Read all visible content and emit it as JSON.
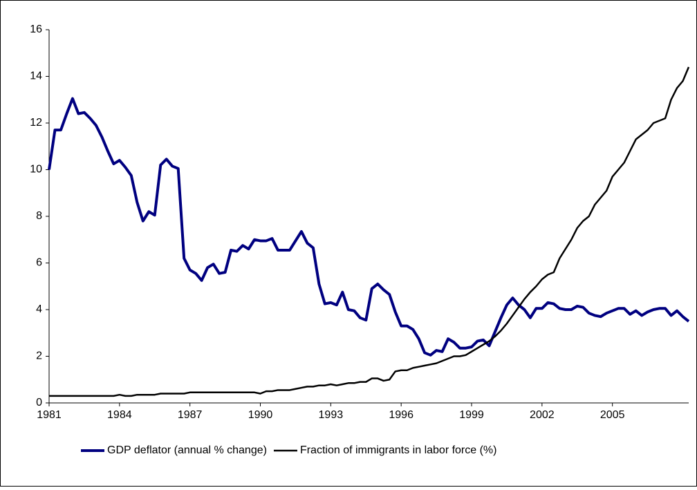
{
  "chart_data": {
    "type": "line",
    "x": [
      1981,
      1981.25,
      1981.5,
      1981.75,
      1982,
      1982.25,
      1982.5,
      1982.75,
      1983,
      1983.25,
      1983.5,
      1983.75,
      1984,
      1984.25,
      1984.5,
      1984.75,
      1985,
      1985.25,
      1985.5,
      1985.75,
      1986,
      1986.25,
      1986.5,
      1986.75,
      1987,
      1987.25,
      1987.5,
      1987.75,
      1988,
      1988.25,
      1988.5,
      1988.75,
      1989,
      1989.25,
      1989.5,
      1989.75,
      1990,
      1990.25,
      1990.5,
      1990.75,
      1991,
      1991.25,
      1991.5,
      1991.75,
      1992,
      1992.25,
      1992.5,
      1992.75,
      1993,
      1993.25,
      1993.5,
      1993.75,
      1994,
      1994.25,
      1994.5,
      1994.75,
      1995,
      1995.25,
      1995.5,
      1995.75,
      1996,
      1996.25,
      1996.5,
      1996.75,
      1997,
      1997.25,
      1997.5,
      1997.75,
      1998,
      1998.25,
      1998.5,
      1998.75,
      1999,
      1999.25,
      1999.5,
      1999.75,
      2000,
      2000.25,
      2000.5,
      2000.75,
      2001,
      2001.25,
      2001.5,
      2001.75,
      2002,
      2002.25,
      2002.5,
      2002.75,
      2003,
      2003.25,
      2003.5,
      2003.75,
      2004,
      2004.25,
      2004.5,
      2004.75,
      2005,
      2005.25,
      2005.5,
      2005.75,
      2006,
      2006.25,
      2006.5,
      2006.75,
      2007,
      2007.25,
      2007.5,
      2007.75,
      2008,
      2008.25
    ],
    "series": [
      {
        "name": "GDP deflator (annual % change)",
        "color": "#000080",
        "values": [
          10.0,
          11.7,
          11.7,
          12.4,
          13.05,
          12.4,
          12.45,
          12.2,
          11.9,
          11.4,
          10.8,
          10.25,
          10.4,
          10.1,
          9.75,
          8.6,
          7.8,
          8.2,
          8.05,
          10.2,
          10.45,
          10.15,
          10.05,
          6.2,
          5.7,
          5.55,
          5.25,
          5.8,
          5.95,
          5.55,
          5.6,
          6.55,
          6.5,
          6.75,
          6.6,
          7.0,
          6.95,
          6.95,
          7.05,
          6.55,
          6.55,
          6.55,
          6.95,
          7.35,
          6.85,
          6.65,
          5.1,
          4.25,
          4.3,
          4.2,
          4.75,
          4.0,
          3.95,
          3.65,
          3.55,
          4.9,
          5.1,
          4.85,
          4.65,
          3.9,
          3.3,
          3.3,
          3.15,
          2.75,
          2.15,
          2.05,
          2.25,
          2.2,
          2.75,
          2.6,
          2.35,
          2.35,
          2.4,
          2.65,
          2.7,
          2.45,
          3.05,
          3.65,
          4.2,
          4.5,
          4.2,
          4.0,
          3.65,
          4.05,
          4.05,
          4.3,
          4.25,
          4.05,
          4.0,
          4.0,
          4.15,
          4.1,
          3.85,
          3.75,
          3.7,
          3.85,
          3.95,
          4.05,
          4.05,
          3.8,
          3.95,
          3.75,
          3.9,
          4.0,
          4.05,
          4.05,
          3.75,
          3.95,
          3.7,
          3.5
        ]
      },
      {
        "name": "Fraction of immigrants in labor force (%)",
        "color": "#000000",
        "values": [
          0.3,
          0.3,
          0.3,
          0.3,
          0.3,
          0.3,
          0.3,
          0.3,
          0.3,
          0.3,
          0.3,
          0.3,
          0.35,
          0.3,
          0.3,
          0.35,
          0.35,
          0.35,
          0.35,
          0.4,
          0.4,
          0.4,
          0.4,
          0.4,
          0.45,
          0.45,
          0.45,
          0.45,
          0.45,
          0.45,
          0.45,
          0.45,
          0.45,
          0.45,
          0.45,
          0.45,
          0.4,
          0.5,
          0.5,
          0.55,
          0.55,
          0.55,
          0.6,
          0.65,
          0.7,
          0.7,
          0.75,
          0.75,
          0.8,
          0.75,
          0.8,
          0.85,
          0.85,
          0.9,
          0.9,
          1.05,
          1.05,
          0.95,
          1.0,
          1.35,
          1.4,
          1.4,
          1.5,
          1.55,
          1.6,
          1.65,
          1.7,
          1.8,
          1.9,
          2.0,
          2.0,
          2.05,
          2.2,
          2.35,
          2.5,
          2.65,
          2.85,
          3.1,
          3.4,
          3.75,
          4.1,
          4.45,
          4.75,
          5.0,
          5.3,
          5.5,
          5.6,
          6.2,
          6.6,
          7.0,
          7.5,
          7.8,
          8.0,
          8.5,
          8.8,
          9.1,
          9.7,
          10.0,
          10.3,
          10.8,
          11.3,
          11.5,
          11.7,
          12.0,
          12.1,
          12.2,
          13.0,
          13.5,
          13.8,
          14.4
        ]
      }
    ],
    "xlim": [
      1981,
      2008.25
    ],
    "xticks": [
      1981,
      1984,
      1987,
      1990,
      1993,
      1996,
      1999,
      2002,
      2005
    ],
    "ylim": [
      0,
      16
    ],
    "yticks": [
      0,
      2,
      4,
      6,
      8,
      10,
      12,
      14,
      16
    ],
    "grid": false,
    "legend": "bottom"
  }
}
